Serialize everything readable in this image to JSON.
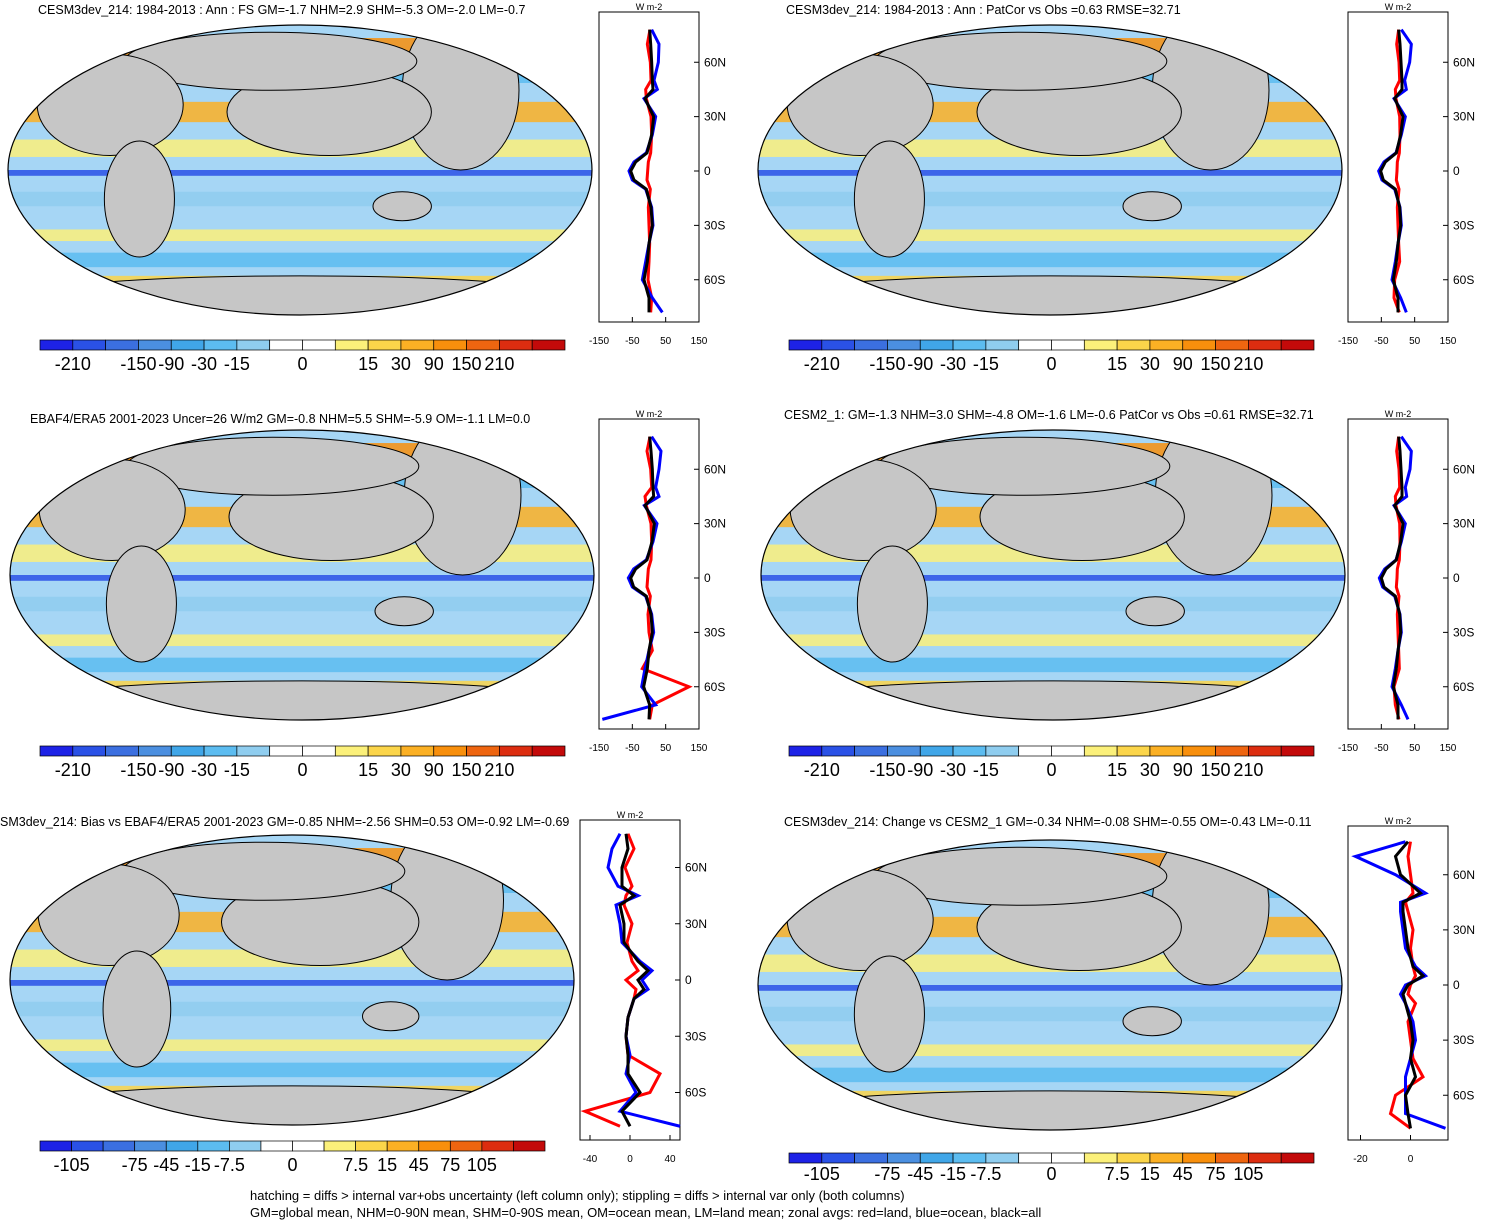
{
  "panels": [
    {
      "title": "CESM3dev_214: 1984-2013 : Ann : FS GM=-1.7 NHM=2.9 SHM=-5.3 OM=-2.0 LM=-0.7",
      "colorbar": {
        "labels": [
          "-210",
          "-150",
          "-90",
          "-30",
          "-15",
          "0",
          "15",
          "30",
          "90",
          "150",
          "210"
        ]
      },
      "zonal": {
        "units": "W m-2",
        "xlim": [
          -150,
          150
        ],
        "xticks": [
          "-150",
          "-50",
          "50",
          "150"
        ],
        "ylabels": [
          "60N",
          "30N",
          "0",
          "30S",
          "60S"
        ]
      }
    },
    {
      "title": "CESM3dev_214: 1984-2013 : Ann : PatCor vs Obs =0.63 RMSE=32.71",
      "colorbar": {
        "labels": [
          "-210",
          "-150",
          "-90",
          "-30",
          "-15",
          "0",
          "15",
          "30",
          "90",
          "150",
          "210"
        ]
      },
      "zonal": {
        "units": "W m-2",
        "xlim": [
          -150,
          150
        ],
        "xticks": [
          "-150",
          "-50",
          "50",
          "150"
        ],
        "ylabels": [
          "60N",
          "30N",
          "0",
          "30S",
          "60S"
        ]
      }
    },
    {
      "title": "EBAF4/ERA5 2001-2023 Uncer=26 W/m2 GM=-0.8 NHM=5.5 SHM=-5.9 OM=-1.1 LM=0.0",
      "colorbar": {
        "labels": [
          "-210",
          "-150",
          "-90",
          "-30",
          "-15",
          "0",
          "15",
          "30",
          "90",
          "150",
          "210"
        ]
      },
      "zonal": {
        "units": "W m-2",
        "xlim": [
          -150,
          150
        ],
        "xticks": [
          "-150",
          "-50",
          "50",
          "150"
        ],
        "ylabels": [
          "60N",
          "30N",
          "0",
          "30S",
          "60S"
        ]
      }
    },
    {
      "title": "CESM2_1: GM=-1.3 NHM=3.0 SHM=-4.8 OM=-1.6 LM=-0.6 PatCor vs Obs =0.61 RMSE=32.71",
      "colorbar": {
        "labels": [
          "-210",
          "-150",
          "-90",
          "-30",
          "-15",
          "0",
          "15",
          "30",
          "90",
          "150",
          "210"
        ]
      },
      "zonal": {
        "units": "W m-2",
        "xlim": [
          -150,
          150
        ],
        "xticks": [
          "-150",
          "-50",
          "50",
          "150"
        ],
        "ylabels": [
          "60N",
          "30N",
          "0",
          "30S",
          "60S"
        ]
      }
    },
    {
      "title": "SM3dev_214: Bias vs EBAF4/ERA5 2001-2023 GM=-0.85 NHM=-2.56 SHM=0.53 OM=-0.92 LM=-0.69",
      "colorbar": {
        "labels": [
          "-105",
          "-75",
          "-45",
          "-15",
          "-7.5",
          "0",
          "7.5",
          "15",
          "45",
          "75",
          "105"
        ]
      },
      "zonal": {
        "units": "W m-2",
        "xlim": [
          -50,
          50
        ],
        "xticks": [
          "-40",
          "0",
          "40"
        ],
        "ylabels": [
          "60N",
          "30N",
          "0",
          "30S",
          "60S"
        ]
      }
    },
    {
      "title": "CESM3dev_214: Change vs CESM2_1 GM=-0.34 NHM=-0.08 SHM=-0.55 OM=-0.43 LM=-0.11",
      "colorbar": {
        "labels": [
          "-105",
          "-75",
          "-45",
          "-15",
          "-7.5",
          "0",
          "7.5",
          "15",
          "45",
          "75",
          "105"
        ]
      },
      "zonal": {
        "units": "W m-2",
        "xlim": [
          -25,
          15
        ],
        "xticks": [
          "-20",
          "0"
        ],
        "ylabels": [
          "60N",
          "30N",
          "0",
          "30S",
          "60S"
        ]
      }
    }
  ],
  "chart_data": [
    {
      "type": "heatmap",
      "title": "CESM3dev_214: 1984-2013 : Ann : FS GM=-1.7 NHM=2.9 SHM=-5.3 OM=-2.0 LM=-0.7",
      "colorbar_levels": [
        "-210",
        "-150",
        "-90",
        "-30",
        "-15",
        "0",
        "15",
        "30",
        "90",
        "150",
        "210"
      ],
      "zonal_mean": {
        "units": "W m-2",
        "xlim": [
          -150,
          150
        ],
        "ylim": [
          -80,
          80
        ],
        "lat": [
          -78,
          -70,
          -60,
          -50,
          -40,
          -30,
          -20,
          -10,
          -5,
          0,
          5,
          10,
          20,
          30,
          40,
          45,
          50,
          60,
          70,
          78
        ],
        "series": [
          {
            "name": "land",
            "color": "red",
            "values": [
              5,
              8,
              -3,
              0,
              2,
              0,
              -2,
              4,
              -6,
              -4,
              -2,
              5,
              8,
              6,
              -8,
              -10,
              6,
              4,
              -5,
              3
            ]
          },
          {
            "name": "ocean",
            "color": "blue",
            "values": [
              40,
              10,
              -20,
              -10,
              0,
              12,
              8,
              -10,
              -50,
              -60,
              -45,
              -8,
              10,
              20,
              -15,
              25,
              15,
              28,
              30,
              8
            ]
          },
          {
            "name": "all",
            "color": "black",
            "values": [
              0,
              0,
              -15,
              -5,
              0,
              10,
              6,
              -8,
              -45,
              -55,
              -40,
              -6,
              8,
              14,
              -12,
              12,
              10,
              8,
              5,
              2
            ]
          }
        ]
      }
    },
    {
      "type": "heatmap",
      "title": "CESM3dev_214: 1984-2013 : Ann : PatCor vs Obs =0.63 RMSE=32.71",
      "colorbar_levels": [
        "-210",
        "-150",
        "-90",
        "-30",
        "-15",
        "0",
        "15",
        "30",
        "90",
        "150",
        "210"
      ],
      "zonal_mean": {
        "units": "W m-2",
        "xlim": [
          -150,
          150
        ],
        "ylim": [
          -80,
          80
        ],
        "lat": [
          -78,
          -70,
          -60,
          -50,
          -40,
          -30,
          -20,
          -10,
          -5,
          0,
          5,
          10,
          20,
          30,
          40,
          45,
          50,
          60,
          70,
          78
        ],
        "series": [
          {
            "name": "land",
            "color": "red",
            "values": [
              4,
              -12,
              -10,
              5,
              2,
              0,
              -2,
              3,
              -5,
              -3,
              -2,
              4,
              6,
              5,
              -6,
              -8,
              5,
              3,
              -4,
              2
            ]
          },
          {
            "name": "ocean",
            "color": "blue",
            "values": [
              25,
              8,
              -18,
              -8,
              0,
              10,
              6,
              -10,
              -48,
              -58,
              -42,
              -6,
              10,
              22,
              -12,
              25,
              20,
              35,
              40,
              10
            ]
          },
          {
            "name": "all",
            "color": "black",
            "values": [
              0,
              0,
              -14,
              -5,
              0,
              8,
              5,
              -8,
              -44,
              -52,
              -38,
              -5,
              8,
              15,
              -10,
              12,
              12,
              9,
              6,
              2
            ]
          }
        ]
      }
    },
    {
      "type": "heatmap",
      "title": "EBAF4/ERA5 2001-2023 Uncer=26 W/m2 GM=-0.8 NHM=5.5 SHM=-5.9 OM=-1.1 LM=0.0",
      "colorbar_levels": [
        "-210",
        "-150",
        "-90",
        "-30",
        "-15",
        "0",
        "15",
        "30",
        "90",
        "150",
        "210"
      ],
      "zonal_mean": {
        "units": "W m-2",
        "xlim": [
          -150,
          150
        ],
        "ylim": [
          -80,
          80
        ],
        "lat": [
          -78,
          -70,
          -60,
          -50,
          -40,
          -30,
          -20,
          -10,
          -5,
          0,
          5,
          10,
          20,
          30,
          40,
          45,
          50,
          60,
          70,
          78
        ],
        "series": [
          {
            "name": "land",
            "color": "red",
            "values": [
              2,
              10,
              120,
              -20,
              10,
              0,
              -3,
              4,
              -6,
              -4,
              -2,
              6,
              8,
              6,
              -8,
              -12,
              8,
              5,
              -6,
              3
            ]
          },
          {
            "name": "ocean",
            "color": "blue",
            "values": [
              -140,
              20,
              -22,
              -12,
              0,
              14,
              8,
              -10,
              -50,
              -62,
              -46,
              -8,
              12,
              24,
              -14,
              30,
              20,
              30,
              36,
              8
            ]
          },
          {
            "name": "all",
            "color": "black",
            "values": [
              0,
              2,
              -16,
              -5,
              0,
              10,
              6,
              -8,
              -46,
              -55,
              -40,
              -6,
              9,
              16,
              -12,
              14,
              12,
              10,
              6,
              2
            ]
          }
        ]
      }
    },
    {
      "type": "heatmap",
      "title": "CESM2_1: GM=-1.3 NHM=3.0 SHM=-4.8 OM=-1.6 LM=-0.6 PatCor vs Obs =0.61 RMSE=32.71",
      "colorbar_levels": [
        "-210",
        "-150",
        "-90",
        "-30",
        "-15",
        "0",
        "15",
        "30",
        "90",
        "150",
        "210"
      ],
      "zonal_mean": {
        "units": "W m-2",
        "xlim": [
          -150,
          150
        ],
        "ylim": [
          -80,
          80
        ],
        "lat": [
          -78,
          -70,
          -60,
          -50,
          -40,
          -30,
          -20,
          -10,
          -5,
          0,
          5,
          10,
          20,
          30,
          40,
          45,
          50,
          60,
          70,
          78
        ],
        "series": [
          {
            "name": "land",
            "color": "red",
            "values": [
              3,
              -8,
              -12,
              4,
              2,
              0,
              -2,
              3,
              -5,
              -3,
              -2,
              4,
              6,
              5,
              -6,
              -8,
              5,
              3,
              -4,
              2
            ]
          },
          {
            "name": "ocean",
            "color": "blue",
            "values": [
              30,
              10,
              -18,
              -8,
              0,
              10,
              6,
              -10,
              -46,
              -56,
              -40,
              -6,
              10,
              22,
              -12,
              26,
              22,
              36,
              40,
              10
            ]
          },
          {
            "name": "all",
            "color": "black",
            "values": [
              0,
              0,
              -14,
              -5,
              0,
              8,
              5,
              -8,
              -42,
              -50,
              -36,
              -5,
              8,
              15,
              -10,
              12,
              12,
              9,
              6,
              2
            ]
          }
        ]
      }
    },
    {
      "type": "heatmap",
      "title": "SM3dev_214: Bias vs EBAF4/ERA5 2001-2023 GM=-0.85 NHM=-2.56 SHM=0.53 OM=-0.92 LM=-0.69",
      "colorbar_levels": [
        "-105",
        "-75",
        "-45",
        "-15",
        "-7.5",
        "0",
        "7.5",
        "15",
        "45",
        "75",
        "105"
      ],
      "zonal_mean": {
        "units": "W m-2",
        "xlim": [
          -50,
          50
        ],
        "ylim": [
          -80,
          80
        ],
        "lat": [
          -78,
          -70,
          -60,
          -50,
          -40,
          -30,
          -20,
          -10,
          -5,
          0,
          5,
          10,
          20,
          30,
          40,
          45,
          50,
          60,
          70,
          78
        ],
        "series": [
          {
            "name": "land",
            "color": "red",
            "values": [
              -10,
              -45,
              20,
              30,
              -2,
              -4,
              -2,
              4,
              6,
              -4,
              8,
              2,
              -3,
              2,
              -6,
              -4,
              2,
              -5,
              4,
              -2
            ]
          },
          {
            "name": "ocean",
            "color": "blue",
            "values": [
              50,
              -10,
              6,
              -4,
              0,
              -4,
              -2,
              4,
              18,
              12,
              22,
              10,
              -8,
              -10,
              -14,
              8,
              -12,
              -22,
              -18,
              -10
            ]
          },
          {
            "name": "all",
            "color": "black",
            "values": [
              0,
              -8,
              10,
              -2,
              -2,
              -4,
              -2,
              4,
              14,
              8,
              18,
              8,
              -6,
              -6,
              -10,
              4,
              -8,
              -8,
              -2,
              -4
            ]
          }
        ]
      }
    },
    {
      "type": "heatmap",
      "title": "CESM3dev_214: Change vs CESM2_1 GM=-0.34 NHM=-0.08 SHM=-0.55 OM=-0.43 LM=-0.11",
      "colorbar_levels": [
        "-105",
        "-75",
        "-45",
        "-15",
        "-7.5",
        "0",
        "7.5",
        "15",
        "45",
        "75",
        "105"
      ],
      "zonal_mean": {
        "units": "W m-2",
        "xlim": [
          -25,
          15
        ],
        "ylim": [
          -80,
          80
        ],
        "lat": [
          -78,
          -70,
          -60,
          -50,
          -40,
          -30,
          -20,
          -10,
          -5,
          0,
          5,
          10,
          20,
          30,
          40,
          45,
          50,
          60,
          70,
          78
        ],
        "series": [
          {
            "name": "land",
            "color": "red",
            "values": [
              0,
              -8,
              -6,
              5,
              1,
              0,
              -1,
              2,
              -1,
              0,
              2,
              1,
              0,
              1,
              -1,
              -2,
              1,
              0,
              -1,
              0
            ]
          },
          {
            "name": "ocean",
            "color": "blue",
            "values": [
              14,
              -2,
              -2,
              -2,
              0,
              2,
              1,
              -2,
              -4,
              -2,
              6,
              2,
              -2,
              -3,
              -4,
              -4,
              6,
              -6,
              -22,
              -2
            ]
          },
          {
            "name": "all",
            "color": "black",
            "values": [
              0,
              -1,
              -2,
              2,
              0,
              1,
              0,
              -2,
              -3,
              -1,
              5,
              1,
              -1,
              -2,
              -3,
              -3,
              4,
              -4,
              -6,
              -1
            ]
          }
        ]
      }
    }
  ],
  "footer": {
    "line1": "hatching = diffs > internal var+obs uncertainty (left column only); stippling = diffs > internal var only (both columns)",
    "line2": "GM=global mean, NHM=0-90N mean, SHM=0-90S mean, OM=ocean mean, LM=land mean; zonal avgs: red=land, blue=ocean, black=all"
  },
  "colors": {
    "land": "#c6c6c6",
    "colorbar": [
      "#1d22e6",
      "#2a51e6",
      "#3b6fe0",
      "#4b8fe0",
      "#40a6e8",
      "#5cbcf0",
      "#8fcdef",
      "#ffffff",
      "#ffffff",
      "#fbf07a",
      "#fbd54a",
      "#fbb024",
      "#f88f0c",
      "#ee6510",
      "#dc2d10",
      "#c30a0a"
    ]
  }
}
